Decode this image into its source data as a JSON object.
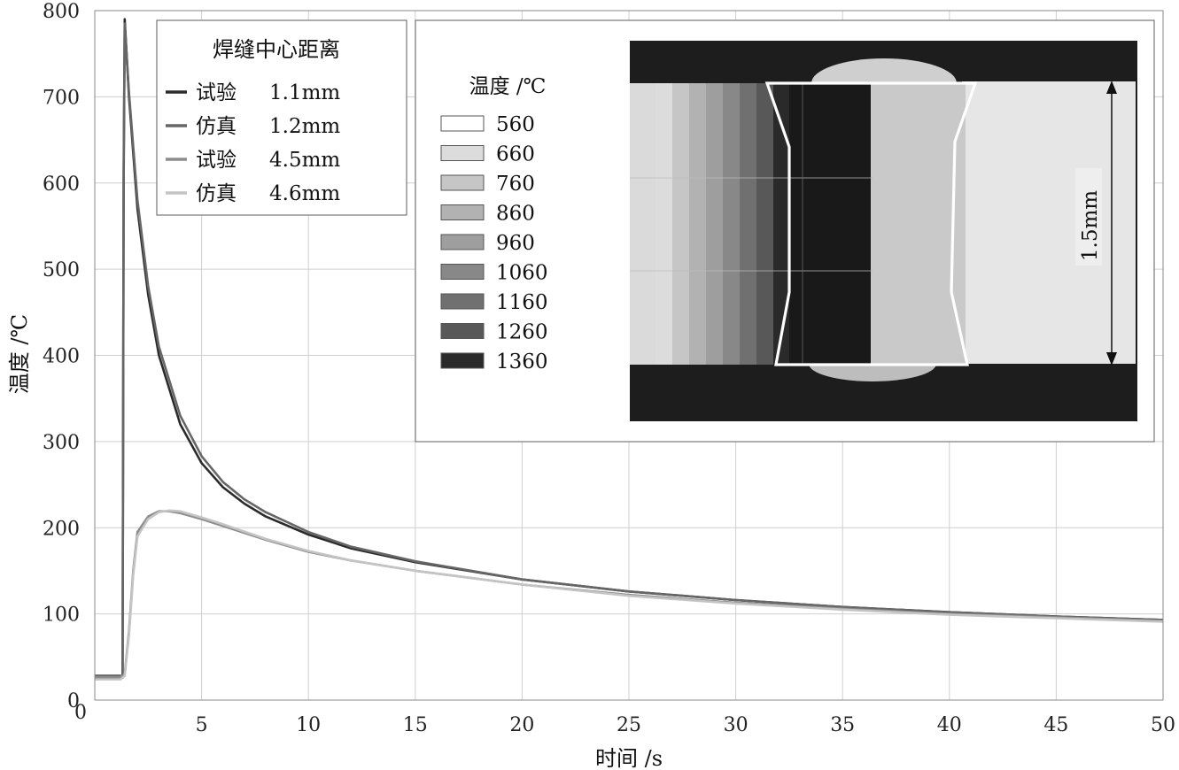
{
  "chart_data": {
    "type": "line",
    "xlabel": "时间 /s",
    "ylabel": "温度 /℃",
    "xlim": [
      0,
      50
    ],
    "ylim": [
      0,
      800
    ],
    "x_ticks": [
      0,
      5,
      10,
      15,
      20,
      25,
      30,
      35,
      40,
      45,
      50
    ],
    "y_ticks": [
      0,
      100,
      200,
      300,
      400,
      500,
      600,
      700,
      800
    ],
    "grid": true,
    "legend_title": "焊缝中心距离",
    "legend_position": "top-left",
    "series": [
      {
        "name": "试验",
        "distance": "1.1mm",
        "color": "#2b2b2b",
        "x": [
          0,
          1.15,
          1.3,
          1.35,
          1.4,
          1.6,
          2,
          2.5,
          3,
          4,
          5,
          6,
          7,
          8,
          10,
          12,
          15,
          20,
          25,
          30,
          35,
          40,
          45,
          50
        ],
        "y": [
          28,
          28,
          28,
          600,
          790,
          700,
          570,
          470,
          400,
          320,
          275,
          247,
          228,
          213,
          192,
          176,
          160,
          140,
          126,
          116,
          108,
          102,
          97,
          93
        ]
      },
      {
        "name": "仿真",
        "distance": "1.2mm",
        "color": "#666666",
        "x": [
          0,
          1.15,
          1.3,
          1.35,
          1.4,
          1.6,
          2,
          2.5,
          3,
          4,
          5,
          6,
          7,
          8,
          10,
          12,
          15,
          20,
          25,
          30,
          35,
          40,
          45,
          50
        ],
        "y": [
          26,
          26,
          26,
          620,
          785,
          705,
          580,
          480,
          410,
          330,
          283,
          253,
          233,
          218,
          195,
          178,
          161,
          140,
          126,
          116,
          108,
          102,
          97,
          93
        ]
      },
      {
        "name": "试验",
        "distance": "4.5mm",
        "color": "#8c8c8c",
        "x": [
          0,
          1.2,
          1.4,
          1.6,
          1.8,
          2,
          2.5,
          3,
          3.5,
          4,
          5,
          6,
          8,
          10,
          12,
          15,
          20,
          25,
          30,
          35,
          40,
          45,
          50
        ],
        "y": [
          27,
          27,
          30,
          80,
          150,
          195,
          213,
          219,
          219,
          217,
          210,
          202,
          186,
          172,
          162,
          150,
          134,
          122,
          113,
          106,
          100,
          96,
          92
        ]
      },
      {
        "name": "仿真",
        "distance": "4.6mm",
        "color": "#c4c4c4",
        "x": [
          0,
          1.2,
          1.4,
          1.6,
          1.8,
          2,
          2.5,
          3,
          3.5,
          4,
          5,
          6,
          8,
          10,
          12,
          15,
          20,
          25,
          30,
          35,
          40,
          45,
          50
        ],
        "y": [
          24,
          24,
          28,
          75,
          145,
          190,
          210,
          218,
          220,
          219,
          212,
          204,
          187,
          173,
          162,
          150,
          134,
          121,
          112,
          105,
          99,
          95,
          91
        ]
      }
    ],
    "inset": {
      "colorbar_title": "温度 /℃",
      "levels": [
        "560",
        "660",
        "760",
        "860",
        "960",
        "1060",
        "1160",
        "1260",
        "1360"
      ],
      "level_colors": [
        "#ffffff",
        "#dcdcdc",
        "#c6c6c6",
        "#b2b2b2",
        "#9e9e9e",
        "#888888",
        "#707070",
        "#585858",
        "#2a2a2a"
      ],
      "dimension_label": "1.5mm"
    }
  }
}
